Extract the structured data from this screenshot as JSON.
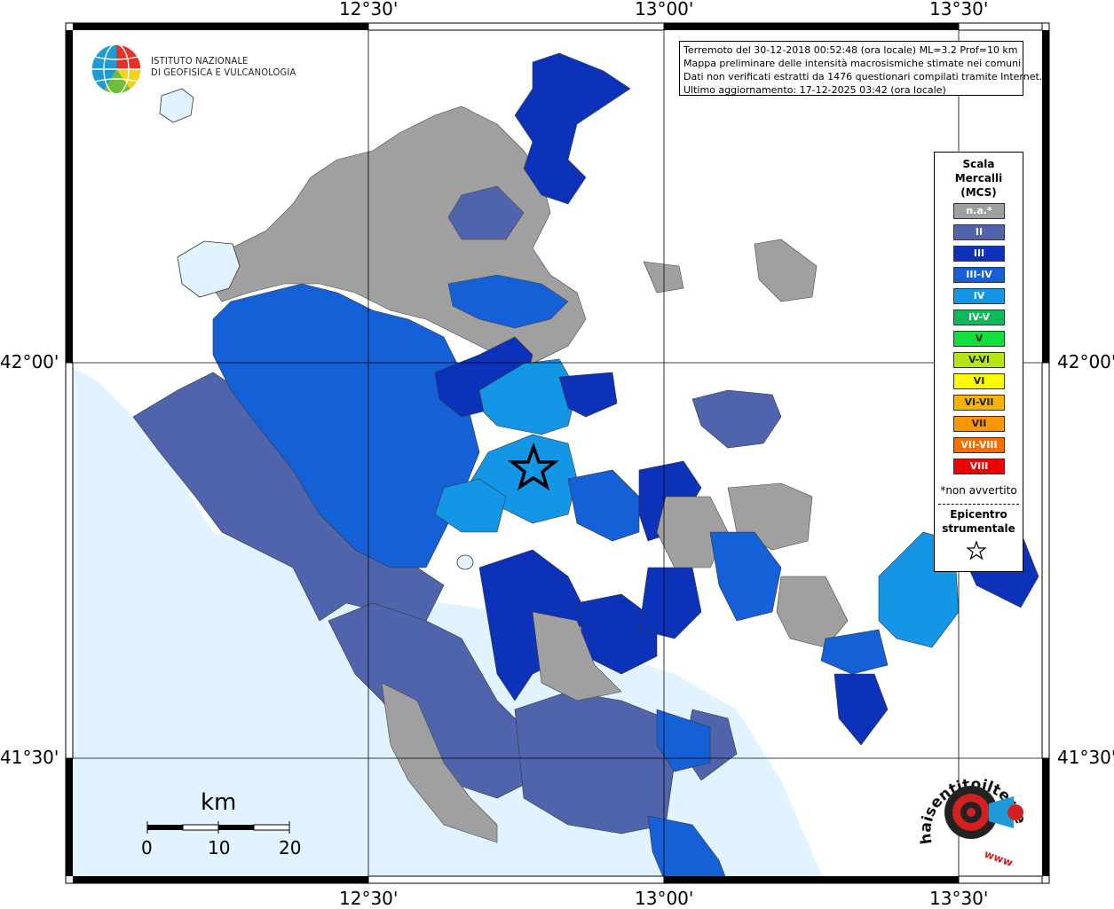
{
  "map": {
    "graticule_top": [
      "12°30'",
      "13°00'",
      "13°30'"
    ],
    "graticule_bottom": [
      "12°30'",
      "13°00'",
      "13°30'"
    ],
    "graticule_left": [
      "42°00'",
      "41°30'"
    ],
    "graticule_right": [
      "42°00'",
      "41°30'"
    ],
    "colors": {
      "sea": "#e0f3ff",
      "na": "#a0a0a0",
      "II": "#5064ae",
      "III": "#0c32b9",
      "III_IV": "#1460d6",
      "IV": "#1496e6"
    }
  },
  "info": {
    "line1": "Terremoto del 30-12-2018 00:52:48 (ora locale) ML=3.2 Prof=10 km",
    "line2": "Mappa preliminare delle intensità macrosismiche stimate nei comuni",
    "line3": "Dati non verificati estratti da 1476 questionari compilati tramite Internet.",
    "line4": "Ultimo aggiornamento: 17-12-2025 03:42 (ora locale)"
  },
  "logo": {
    "line1": "ISTITUTO NAZIONALE",
    "line2": "DI GEOFISICA E VULCANOLOGIA"
  },
  "legend": {
    "title1": "Scala",
    "title2": "Mercalli",
    "title3": "(MCS)",
    "levels": [
      {
        "label": "n.a.*",
        "color": "#a0a0a0"
      },
      {
        "label": "II",
        "color": "#5064ae"
      },
      {
        "label": "III",
        "color": "#0c32b9"
      },
      {
        "label": "III-IV",
        "color": "#1460d6"
      },
      {
        "label": "IV",
        "color": "#1496e6"
      },
      {
        "label": "IV-V",
        "color": "#10b85a"
      },
      {
        "label": "V",
        "color": "#0fe03c"
      },
      {
        "label": "V-VI",
        "color": "#b4e614"
      },
      {
        "label": "VI",
        "color": "#fafa00"
      },
      {
        "label": "VI-VII",
        "color": "#fab400"
      },
      {
        "label": "VII",
        "color": "#fa9600"
      },
      {
        "label": "VII-VIII",
        "color": "#fa6e00"
      },
      {
        "label": "VIII",
        "color": "#f00000"
      }
    ],
    "note": "*non avvertito",
    "epi1": "Epicentro",
    "epi2": "strumentale"
  },
  "scale": {
    "unit": "km",
    "ticks": [
      "0",
      "10",
      "20"
    ]
  },
  "badge": {
    "text_main": "haisentitoilterremoto",
    "text_tld": ".it",
    "text_www": "www."
  }
}
